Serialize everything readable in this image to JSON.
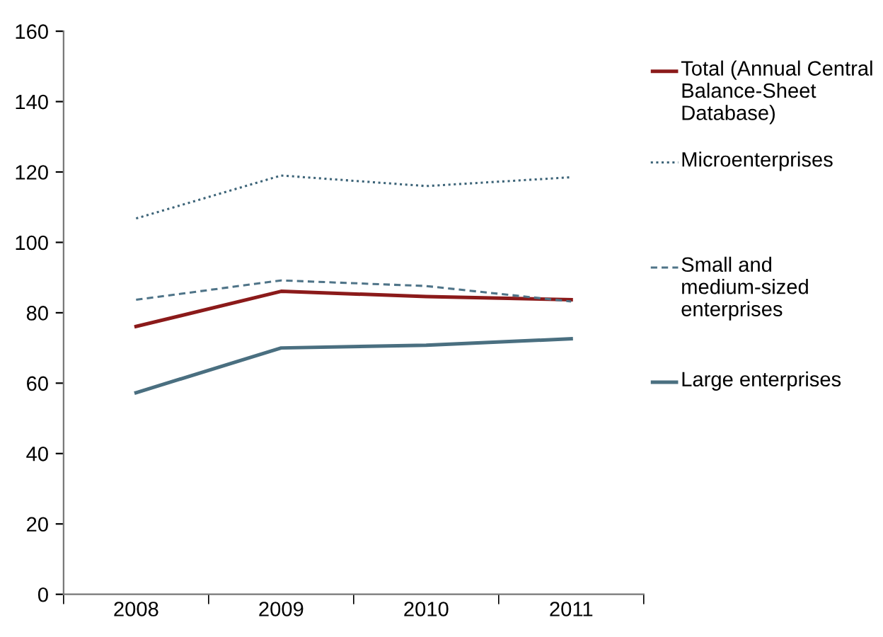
{
  "chart_data": {
    "type": "line",
    "categories": [
      "2008",
      "2009",
      "2010",
      "2011"
    ],
    "series": [
      {
        "name": "Total (Annual Central Balance-Sheet Database)",
        "color": "#8b1a1a",
        "line_style": "solid",
        "values": [
          76.1,
          86.1,
          84.6,
          83.7
        ]
      },
      {
        "name": "Microenterprises",
        "color": "#3d6478",
        "line_style": "dotted",
        "values": [
          106.8,
          119,
          116,
          118.5
        ]
      },
      {
        "name": "Small and medium-sized enterprises",
        "color": "#4f7488",
        "line_style": "dashed",
        "values": [
          83.7,
          89.2,
          87.6,
          83.2
        ]
      },
      {
        "name": "Large enterprises",
        "color": "#4a6f80",
        "line_style": "solid",
        "values": [
          57.3,
          70,
          70.8,
          72.6
        ]
      }
    ],
    "ylim": [
      0,
      160
    ],
    "yticks": [
      0,
      20,
      40,
      60,
      80,
      100,
      120,
      140,
      160
    ],
    "grid": false,
    "legend": "right"
  }
}
